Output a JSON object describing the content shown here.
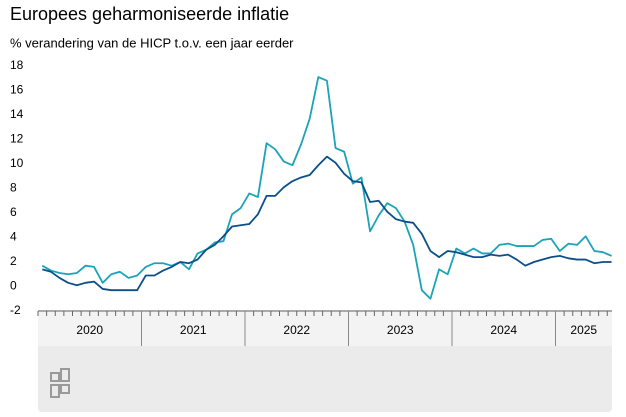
{
  "chart_data": {
    "type": "line",
    "title": "Europees geharmoniseerde inflatie",
    "subtitle": "% verandering van de HICP t.o.v. een jaar eerder",
    "years": [
      "2020",
      "2021",
      "2022",
      "2023",
      "2024",
      "2025"
    ],
    "ylim": [
      -2,
      18
    ],
    "yticks": [
      -2,
      0,
      2,
      4,
      6,
      8,
      10,
      12,
      14,
      16,
      18
    ],
    "grid": false,
    "series": [
      {
        "color": "#1ba3b8",
        "values": [
          1.7,
          1.3,
          1.1,
          1.0,
          1.1,
          1.7,
          1.6,
          0.3,
          1.0,
          1.2,
          0.7,
          0.9,
          1.6,
          1.9,
          1.9,
          1.7,
          2.0,
          1.4,
          2.7,
          3.0,
          3.6,
          3.7,
          5.9,
          6.4,
          7.6,
          7.3,
          11.7,
          11.2,
          10.2,
          9.9,
          11.6,
          13.7,
          17.1,
          16.8,
          11.3,
          11.0,
          8.4,
          8.9,
          4.5,
          5.8,
          6.8,
          6.4,
          5.3,
          3.4,
          -0.3,
          -1.0,
          1.4,
          1.0,
          3.1,
          2.7,
          3.1,
          2.7,
          2.7,
          3.4,
          3.5,
          3.3,
          3.3,
          3.3,
          3.8,
          3.9,
          2.9,
          3.5,
          3.4,
          4.1,
          2.9,
          2.8,
          2.5
        ]
      },
      {
        "color": "#0b4f8a",
        "values": [
          1.4,
          1.2,
          0.7,
          0.3,
          0.1,
          0.3,
          0.4,
          -0.2,
          -0.3,
          -0.3,
          -0.3,
          -0.3,
          0.9,
          0.9,
          1.3,
          1.6,
          2.0,
          1.9,
          2.2,
          3.0,
          3.4,
          4.1,
          4.9,
          5.0,
          5.1,
          5.9,
          7.4,
          7.4,
          8.1,
          8.6,
          8.9,
          9.1,
          9.9,
          10.6,
          10.1,
          9.2,
          8.6,
          8.5,
          6.9,
          7.0,
          6.1,
          5.5,
          5.3,
          5.2,
          4.3,
          2.9,
          2.4,
          2.9,
          2.8,
          2.6,
          2.4,
          2.4,
          2.6,
          2.5,
          2.6,
          2.2,
          1.7,
          2.0,
          2.2,
          2.4,
          2.5,
          2.3,
          2.2,
          2.2,
          1.9,
          2.0,
          2.0
        ]
      }
    ]
  }
}
